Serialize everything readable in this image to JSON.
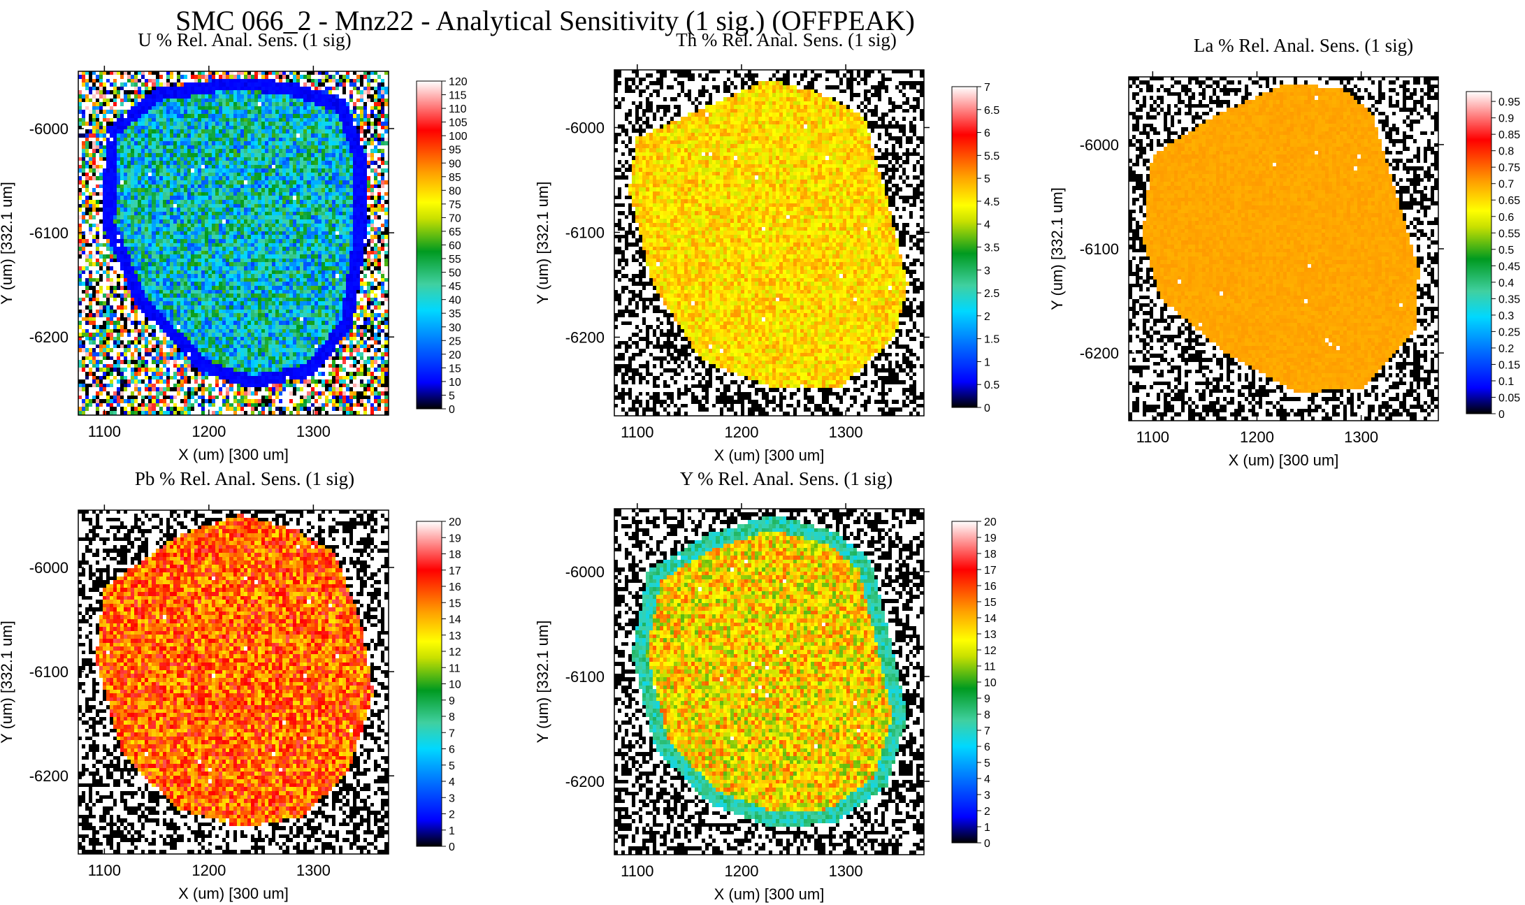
{
  "title": "SMC 066_2 - Mnz22 - Analytical Sensitivity (1 sig.) (OFFPEAK)",
  "colors": {
    "background": "#ffffff",
    "axis": "#000000",
    "colormap": [
      "#000000",
      "#0000ff",
      "#00cfff",
      "#009a20",
      "#ffff00",
      "#ff9a00",
      "#ff0000",
      "#ffffff"
    ]
  },
  "chart_data": [
    {
      "type": "heatmap",
      "element": "U",
      "title": "U % Rel. Anal. Sens. (1 sig)",
      "xlabel": "X (um)   [300 um]",
      "ylabel": "Y (um)   [332.1 um]",
      "xlim": [
        1075,
        1372
      ],
      "ylim": [
        -6275,
        -5945
      ],
      "xticks": [
        1100,
        1200,
        1300
      ],
      "yticks": [
        -6000,
        -6100,
        -6200
      ],
      "colorbar": {
        "min": 0,
        "max": 120,
        "ticks": [
          0,
          5,
          10,
          15,
          20,
          25,
          30,
          35,
          40,
          45,
          50,
          55,
          60,
          65,
          70,
          75,
          80,
          85,
          90,
          95,
          100,
          105,
          110,
          115,
          120
        ]
      },
      "grain": {
        "value_mean": 40,
        "value_spread": 22,
        "rim_value": 10,
        "rim_width_um": 12,
        "outside": "multicolor-noise"
      },
      "grain_outline": [
        [
          1218,
          -5952
        ],
        [
          1278,
          -5955
        ],
        [
          1332,
          -5975
        ],
        [
          1352,
          -6030
        ],
        [
          1350,
          -6110
        ],
        [
          1338,
          -6190
        ],
        [
          1300,
          -6238
        ],
        [
          1240,
          -6250
        ],
        [
          1190,
          -6232
        ],
        [
          1130,
          -6168
        ],
        [
          1098,
          -6092
        ],
        [
          1102,
          -6000
        ],
        [
          1150,
          -5962
        ]
      ]
    },
    {
      "type": "heatmap",
      "element": "Th",
      "title": "Th % Rel. Anal. Sens. (1 sig)",
      "xlabel": "X (um)   [300 um]",
      "ylabel": "Y (um)   [332.1 um]",
      "xlim": [
        1078,
        1375
      ],
      "ylim": [
        -6275,
        -5945
      ],
      "xticks": [
        1100,
        1200,
        1300
      ],
      "yticks": [
        -6000,
        -6100,
        -6200
      ],
      "colorbar": {
        "min": 0,
        "max": 7,
        "ticks": [
          0,
          0.5,
          1,
          1.5,
          2,
          2.5,
          3,
          3.5,
          4,
          4.5,
          5,
          5.5,
          6,
          6.5,
          7
        ]
      },
      "grain": {
        "value_mean": 4.6,
        "value_spread": 0.5,
        "outside": "black-white-noise"
      },
      "grain_outline": [
        [
          1150,
          -5988
        ],
        [
          1225,
          -5955
        ],
        [
          1272,
          -5966
        ],
        [
          1318,
          -5990
        ],
        [
          1340,
          -6068
        ],
        [
          1360,
          -6150
        ],
        [
          1348,
          -6200
        ],
        [
          1295,
          -6248
        ],
        [
          1228,
          -6248
        ],
        [
          1162,
          -6222
        ],
        [
          1115,
          -6150
        ],
        [
          1092,
          -6060
        ],
        [
          1100,
          -6010
        ]
      ]
    },
    {
      "type": "heatmap",
      "element": "La",
      "title": "La % Rel. Anal. Sens. (1 sig)",
      "xlabel": "X (um)   [300 um]",
      "ylabel": "Y (um)   [332.1 um]",
      "xlim": [
        1077,
        1374
      ],
      "ylim": [
        -6265,
        -5935
      ],
      "xticks": [
        1100,
        1200,
        1300
      ],
      "yticks": [
        -6000,
        -6100,
        -6200
      ],
      "colorbar": {
        "min": 0,
        "max": 0.98,
        "ticks": [
          0,
          0.05,
          0.1,
          0.15,
          0.2,
          0.25,
          0.3,
          0.35,
          0.4,
          0.45,
          0.5,
          0.55,
          0.6,
          0.65,
          0.7,
          0.75,
          0.8,
          0.85,
          0.9,
          0.95
        ]
      },
      "grain": {
        "value_mean": 0.7,
        "value_spread": 0.01,
        "outside": "black-white-noise"
      },
      "grain_outline": [
        [
          1165,
          -5970
        ],
        [
          1228,
          -5942
        ],
        [
          1282,
          -5946
        ],
        [
          1312,
          -5972
        ],
        [
          1330,
          -6035
        ],
        [
          1356,
          -6120
        ],
        [
          1352,
          -6178
        ],
        [
          1300,
          -6235
        ],
        [
          1238,
          -6238
        ],
        [
          1170,
          -6200
        ],
        [
          1108,
          -6148
        ],
        [
          1090,
          -6090
        ],
        [
          1100,
          -6010
        ]
      ]
    },
    {
      "type": "heatmap",
      "element": "Pb",
      "title": "Pb % Rel. Anal. Sens. (1 sig)",
      "xlabel": "X (um)   [300 um]",
      "ylabel": "Y (um)   [332.1 um]",
      "xlim": [
        1075,
        1372
      ],
      "ylim": [
        -6275,
        -5945
      ],
      "xticks": [
        1100,
        1200,
        1300
      ],
      "yticks": [
        -6000,
        -6100,
        -6200
      ],
      "colorbar": {
        "min": 0,
        "max": 20,
        "ticks": [
          0,
          1,
          2,
          3,
          4,
          5,
          6,
          7,
          8,
          9,
          10,
          11,
          12,
          13,
          14,
          15,
          16,
          17,
          18,
          19,
          20
        ]
      },
      "grain": {
        "value_mean": 15.5,
        "value_spread": 2.5,
        "outside": "black-white-noise"
      },
      "grain_outline": [
        [
          1170,
          -5970
        ],
        [
          1230,
          -5950
        ],
        [
          1285,
          -5965
        ],
        [
          1320,
          -5985
        ],
        [
          1345,
          -6050
        ],
        [
          1358,
          -6120
        ],
        [
          1335,
          -6195
        ],
        [
          1290,
          -6240
        ],
        [
          1232,
          -6250
        ],
        [
          1170,
          -6232
        ],
        [
          1118,
          -6180
        ],
        [
          1092,
          -6090
        ],
        [
          1100,
          -6020
        ]
      ]
    },
    {
      "type": "heatmap",
      "element": "Y",
      "title": "Y % Rel. Anal. Sens. (1 sig)",
      "xlabel": "X (um)   [300 um]",
      "ylabel": "Y (um)   [332.1 um]",
      "xlim": [
        1078,
        1375
      ],
      "ylim": [
        -6270,
        -5940
      ],
      "xticks": [
        1100,
        1200,
        1300
      ],
      "yticks": [
        -6000,
        -6100,
        -6200
      ],
      "colorbar": {
        "min": 0,
        "max": 20,
        "ticks": [
          0,
          1,
          2,
          3,
          4,
          5,
          6,
          7,
          8,
          9,
          10,
          11,
          12,
          13,
          14,
          15,
          16,
          17,
          18,
          19,
          20
        ]
      },
      "grain": {
        "value_mean": 13,
        "value_spread": 2.5,
        "rim_value": 7.5,
        "rim_width_um": 14,
        "outside": "black-white-noise"
      },
      "grain_outline": [
        [
          1168,
          -5965
        ],
        [
          1230,
          -5946
        ],
        [
          1290,
          -5962
        ],
        [
          1325,
          -5990
        ],
        [
          1342,
          -6060
        ],
        [
          1360,
          -6140
        ],
        [
          1340,
          -6205
        ],
        [
          1290,
          -6240
        ],
        [
          1230,
          -6245
        ],
        [
          1170,
          -6222
        ],
        [
          1118,
          -6170
        ],
        [
          1095,
          -6080
        ],
        [
          1110,
          -6000
        ]
      ]
    }
  ]
}
